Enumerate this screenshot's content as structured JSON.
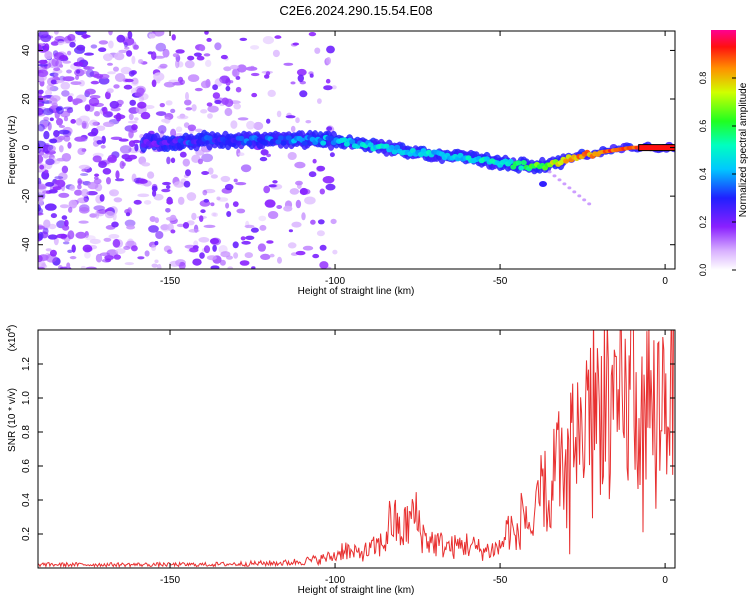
{
  "title": "C2E6.2024.290.15.54.E08",
  "chart_data": [
    {
      "type": "heatmap",
      "xlabel": "Height of straight line (km)",
      "ylabel": "Frequency (Hz)",
      "xlim": [
        -190,
        3
      ],
      "ylim": [
        -50,
        48
      ],
      "xticks": [
        -150,
        -100,
        -50,
        0
      ],
      "yticks": [
        -40,
        -20,
        0,
        20,
        40
      ],
      "colorbar": {
        "label": "Normalized spectral amplitude",
        "range": [
          0,
          1
        ],
        "ticks": [
          0.0,
          0.2,
          0.4,
          0.6,
          0.8
        ],
        "tick_labels": [
          "0.0",
          "0.2",
          "0.4",
          "0.6",
          "0.8"
        ]
      },
      "ridge": {
        "x": [
          -155,
          -140,
          -120,
          -100,
          -90,
          -80,
          -70,
          -60,
          -50,
          -40,
          -35,
          -30,
          -25,
          -20,
          -15,
          -10,
          -5,
          0,
          3
        ],
        "frequency": [
          2,
          3,
          3,
          3,
          1,
          -1,
          -3,
          -4,
          -6,
          -8,
          -7,
          -5,
          -3,
          -2,
          -1,
          0,
          0,
          0,
          0
        ],
        "amplitude": [
          0.25,
          0.3,
          0.35,
          0.4,
          0.45,
          0.45,
          0.45,
          0.45,
          0.5,
          0.6,
          0.7,
          0.8,
          0.85,
          0.85,
          0.9,
          0.9,
          0.95,
          1.0,
          1.0
        ]
      }
    },
    {
      "type": "line",
      "xlabel": "Height of straight line (km)",
      "ylabel": "SNR (10 * v/v)",
      "y_multiplier_label": "(x10",
      "y_multiplier_exp": "4",
      "y_multiplier_close": ")",
      "xlim": [
        -190,
        3
      ],
      "ylim": [
        0,
        1.4
      ],
      "xticks": [
        -150,
        -100,
        -50,
        0
      ],
      "yticks": [
        0.2,
        0.4,
        0.6,
        0.8,
        1.0,
        1.2
      ],
      "ytick_labels": [
        "0.2",
        "0.4",
        "0.6",
        "0.8",
        "1.0",
        "1.2"
      ],
      "series": [
        {
          "color": "#e83030",
          "x": [
            -190,
            -140,
            -115,
            -105,
            -100,
            -97,
            -95,
            -90,
            -85,
            -83,
            -80,
            -76,
            -73,
            -70,
            -65,
            -60,
            -55,
            -50,
            -47,
            -45,
            -43,
            -40,
            -37,
            -35,
            -33,
            -30,
            -28,
            -25,
            -23,
            -20,
            -18,
            -15,
            -13,
            -11,
            -10,
            -9,
            -7,
            -5,
            -3,
            0,
            3
          ],
          "values": [
            0.02,
            0.02,
            0.03,
            0.05,
            0.07,
            0.12,
            0.08,
            0.1,
            0.15,
            0.3,
            0.2,
            0.32,
            0.18,
            0.15,
            0.12,
            0.14,
            0.1,
            0.12,
            0.25,
            0.15,
            0.35,
            0.2,
            0.5,
            0.35,
            0.65,
            0.45,
            0.85,
            0.75,
            1.1,
            0.9,
            1.15,
            0.8,
            1.0,
            0.9,
            1.4,
            0.85,
            0.95,
            1.0,
            0.95,
            1.05,
            1.1
          ]
        }
      ]
    }
  ]
}
